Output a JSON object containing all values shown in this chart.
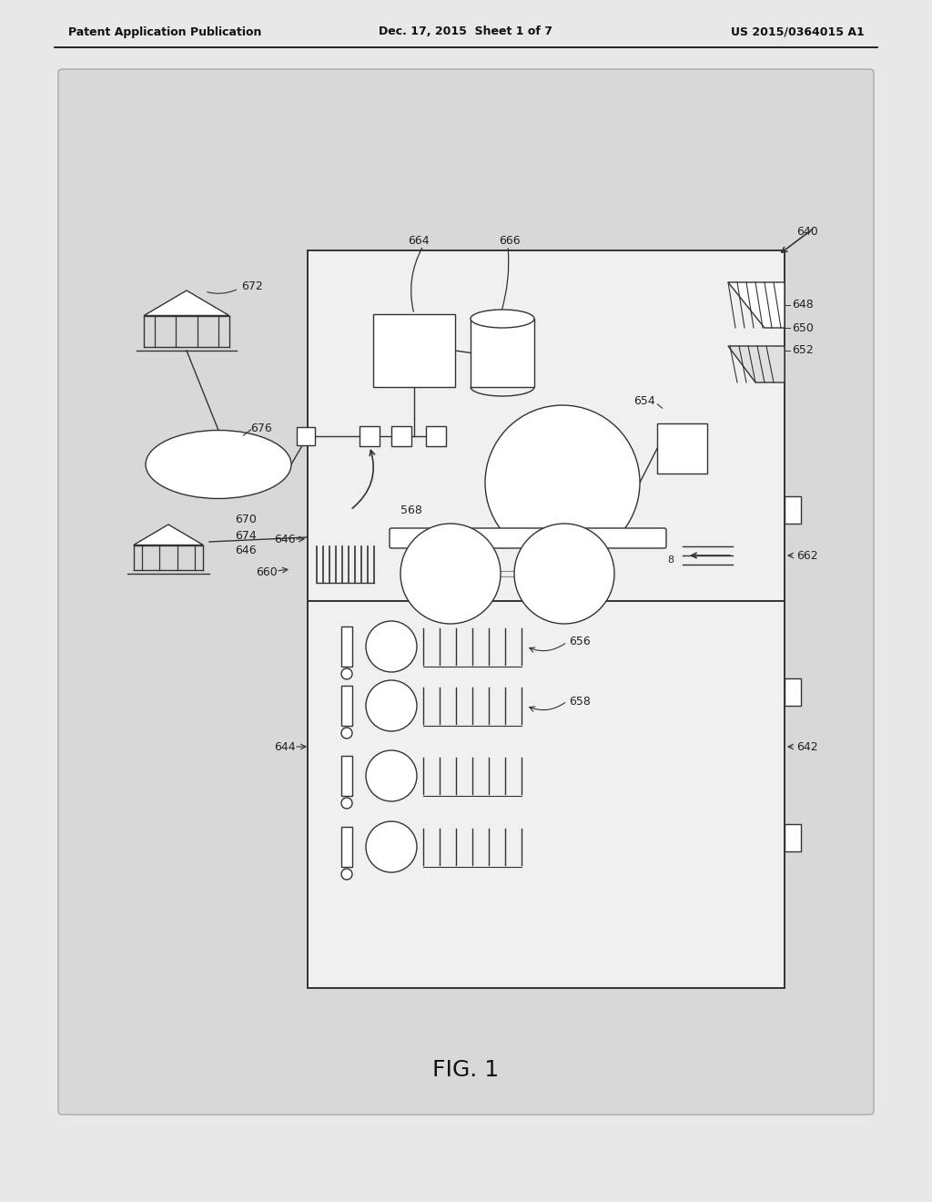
{
  "bg_outer": "#e8e8e8",
  "bg_inner": "#d8d8d8",
  "bg_white": "#ffffff",
  "line_color": "#333333",
  "text_color": "#222222",
  "title_left": "Patent Application Publication",
  "title_mid": "Dec. 17, 2015  Sheet 1 of 7",
  "title_right": "US 2015/0364015 A1",
  "fig_label": "FIG. 1"
}
